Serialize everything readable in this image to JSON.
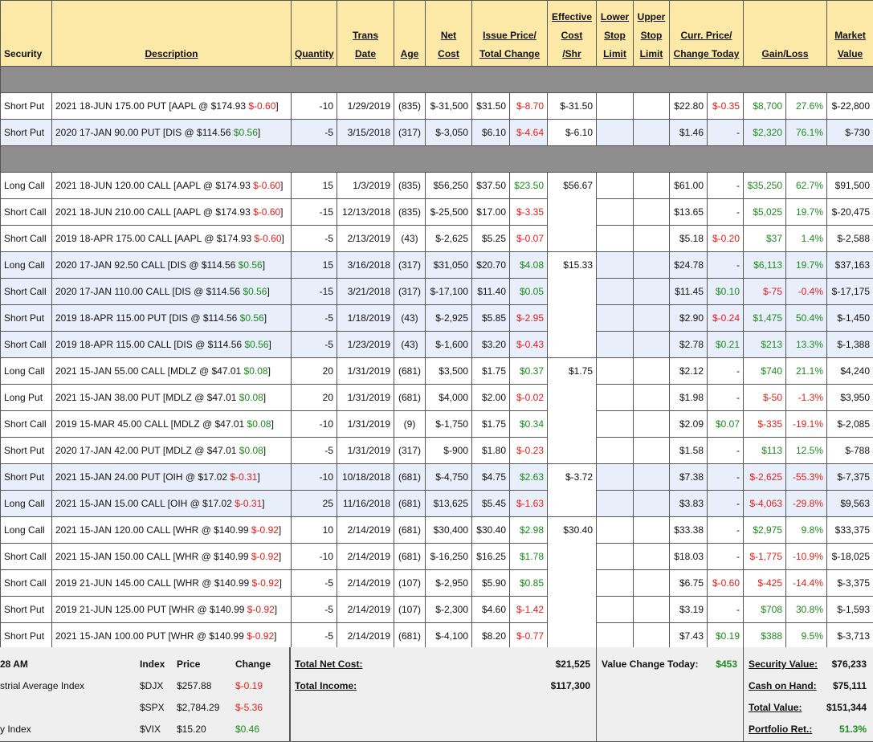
{
  "header": {
    "columns": [
      {
        "lines": [
          "Security"
        ]
      },
      {
        "lines": [
          "Description"
        ]
      },
      {
        "lines": [
          "Quantity"
        ]
      },
      {
        "lines": [
          "Trans",
          "Date"
        ]
      },
      {
        "lines": [
          "Age"
        ]
      },
      {
        "lines": [
          "Net",
          "Cost"
        ]
      },
      {
        "lines": [
          "Issue Price/",
          "Total Change"
        ],
        "span": 2
      },
      {
        "lines": [
          "Effective",
          "Cost",
          "/Shr"
        ]
      },
      {
        "lines": [
          "Lower",
          "Stop",
          "Limit"
        ]
      },
      {
        "lines": [
          "Upper",
          "Stop",
          "Limit"
        ]
      },
      {
        "lines": [
          "Curr. Price/",
          "Change Today"
        ],
        "span": 2
      },
      {
        "lines": [
          "Gain/Loss"
        ],
        "span": 2
      },
      {
        "lines": [
          "Market",
          "Value"
        ]
      }
    ]
  },
  "sections": [
    {
      "groups": [
        {
          "effective_cost": "$-31.50",
          "rows": [
            [
              "Short Put",
              "2021 18-JUN 175.00 PUT [AAPL @ $174.93",
              "$-0.60",
              "]",
              "-10",
              "1/29/2019",
              "(835)",
              "$-31,500",
              "$31.50",
              "$-8.70",
              "$22.80",
              "$-0.35",
              "$8,700",
              "27.6%",
              "$-22,800"
            ]
          ]
        },
        {
          "effective_cost": "$-6.10",
          "highlight": true,
          "rows": [
            [
              "Short Put",
              "2020 17-JAN 90.00 PUT [DIS @ $114.56",
              "$0.56",
              "]",
              "-5",
              "3/15/2018",
              "(317)",
              "$-3,050",
              "$6.10",
              "$-4.64",
              "$1.46",
              "-",
              "$2,320",
              "76.1%",
              "$-730"
            ]
          ]
        }
      ]
    },
    {
      "groups": [
        {
          "effective_cost": "$56.67",
          "rows": [
            [
              "Long Call",
              "2021 18-JUN 120.00 CALL [AAPL @ $174.93",
              "$-0.60",
              "]",
              "15",
              "1/3/2019",
              "(835)",
              "$56,250",
              "$37.50",
              "$23.50",
              "$61.00",
              "-",
              "$35,250",
              "62.7%",
              "$91,500"
            ],
            [
              "Short Call",
              "2021 18-JUN 210.00 CALL [AAPL @ $174.93",
              "$-0.60",
              "]",
              "-15",
              "12/13/2018",
              "(835)",
              "$-25,500",
              "$17.00",
              "$-3.35",
              "$13.65",
              "-",
              "$5,025",
              "19.7%",
              "$-20,475"
            ],
            [
              "Short Call",
              "2019 18-APR 175.00 CALL [AAPL @ $174.93",
              "$-0.60",
              "]",
              "-5",
              "2/13/2019",
              "(43)",
              "$-2,625",
              "$5.25",
              "$-0.07",
              "$5.18",
              "$-0.20",
              "$37",
              "1.4%",
              "$-2,588"
            ]
          ]
        },
        {
          "effective_cost": "$15.33",
          "highlight": true,
          "rows": [
            [
              "Long Call",
              "2020 17-JAN 92.50 CALL [DIS @ $114.56",
              "$0.56",
              "]",
              "15",
              "3/16/2018",
              "(317)",
              "$31,050",
              "$20.70",
              "$4.08",
              "$24.78",
              "-",
              "$6,113",
              "19.7%",
              "$37,163"
            ],
            [
              "Short Call",
              "2020 17-JAN 110.00 CALL [DIS @ $114.56",
              "$0.56",
              "]",
              "-15",
              "3/21/2018",
              "(317)",
              "$-17,100",
              "$11.40",
              "$0.05",
              "$11.45",
              "$0.10",
              "$-75",
              "-0.4%",
              "$-17,175"
            ],
            [
              "Short Put",
              "2019 18-APR 115.00 PUT [DIS @ $114.56",
              "$0.56",
              "]",
              "-5",
              "1/18/2019",
              "(43)",
              "$-2,925",
              "$5.85",
              "$-2.95",
              "$2.90",
              "$-0.24",
              "$1,475",
              "50.4%",
              "$-1,450"
            ],
            [
              "Short Call",
              "2019 18-APR 115.00 CALL [DIS @ $114.56",
              "$0.56",
              "]",
              "-5",
              "1/23/2019",
              "(43)",
              "$-1,600",
              "$3.20",
              "$-0.43",
              "$2.78",
              "$0.21",
              "$213",
              "13.3%",
              "$-1,388"
            ]
          ]
        },
        {
          "effective_cost": "$1.75",
          "rows": [
            [
              "Long Call",
              "2021 15-JAN 55.00 CALL [MDLZ @ $47.01",
              "$0.08",
              "]",
              "20",
              "1/31/2019",
              "(681)",
              "$3,500",
              "$1.75",
              "$0.37",
              "$2.12",
              "-",
              "$740",
              "21.1%",
              "$4,240"
            ],
            [
              "Long Put",
              "2021 15-JAN 38.00 PUT [MDLZ @ $47.01",
              "$0.08",
              "]",
              "20",
              "1/31/2019",
              "(681)",
              "$4,000",
              "$2.00",
              "$-0.02",
              "$1.98",
              "-",
              "$-50",
              "-1.3%",
              "$3,950"
            ],
            [
              "Short Call",
              "2019 15-MAR 45.00 CALL [MDLZ @ $47.01",
              "$0.08",
              "]",
              "-10",
              "1/31/2019",
              "(9)",
              "$-1,750",
              "$1.75",
              "$0.34",
              "$2.09",
              "$0.07",
              "$-335",
              "-19.1%",
              "$-2,085"
            ],
            [
              "Short Put",
              "2020 17-JAN 42.00 PUT [MDLZ @ $47.01",
              "$0.08",
              "]",
              "-5",
              "1/31/2019",
              "(317)",
              "$-900",
              "$1.80",
              "$-0.23",
              "$1.58",
              "-",
              "$113",
              "12.5%",
              "$-788"
            ]
          ]
        },
        {
          "effective_cost": "$-3.72",
          "highlight": true,
          "rows": [
            [
              "Short Put",
              "2021 15-JAN 24.00 PUT [OIH @ $17.02",
              "$-0.31",
              "]",
              "-10",
              "10/18/2018",
              "(681)",
              "$-4,750",
              "$4.75",
              "$2.63",
              "$7.38",
              "-",
              "$-2,625",
              "-55.3%",
              "$-7,375"
            ],
            [
              "Long Call",
              "2021 15-JAN 15.00 CALL [OIH @ $17.02",
              "$-0.31",
              "]",
              "25",
              "11/16/2018",
              "(681)",
              "$13,625",
              "$5.45",
              "$-1.63",
              "$3.83",
              "-",
              "$-4,063",
              "-29.8%",
              "$9,563"
            ]
          ]
        },
        {
          "effective_cost": "$30.40",
          "rows": [
            [
              "Long Call",
              "2021 15-JAN 120.00 CALL [WHR @ $140.99",
              "$-0.92",
              "]",
              "10",
              "2/14/2019",
              "(681)",
              "$30,400",
              "$30.40",
              "$2.98",
              "$33.38",
              "-",
              "$2,975",
              "9.8%",
              "$33,375"
            ],
            [
              "Short Call",
              "2021 15-JAN 150.00 CALL [WHR @ $140.99",
              "$-0.92",
              "]",
              "-10",
              "2/14/2019",
              "(681)",
              "$-16,250",
              "$16.25",
              "$1.78",
              "$18.03",
              "-",
              "$-1,775",
              "-10.9%",
              "$-18,025"
            ],
            [
              "Short Call",
              "2019 21-JUN 145.00 CALL [WHR @ $140.99",
              "$-0.92",
              "]",
              "-5",
              "2/14/2019",
              "(107)",
              "$-2,950",
              "$5.90",
              "$0.85",
              "$6.75",
              "$-0.60",
              "$-425",
              "-14.4%",
              "$-3,375"
            ],
            [
              "Short Put",
              "2019 21-JUN 125.00 PUT [WHR @ $140.99",
              "$-0.92",
              "]",
              "-5",
              "2/14/2019",
              "(107)",
              "$-2,300",
              "$4.60",
              "$-1.42",
              "$3.19",
              "-",
              "$708",
              "30.8%",
              "$-1,593"
            ],
            [
              "Short Put",
              "2021 15-JAN 100.00 PUT [WHR @ $140.99",
              "$-0.92",
              "]",
              "-5",
              "2/14/2019",
              "(681)",
              "$-4,100",
              "$8.20",
              "$-0.77",
              "$7.43",
              "$0.19",
              "$388",
              "9.5%",
              "$-3,713"
            ]
          ]
        }
      ]
    }
  ],
  "footer": {
    "time": "28 AM",
    "index_headers": [
      "Index",
      "Price",
      "Change"
    ],
    "indices": [
      [
        "strial Average Index",
        "$DJX",
        "$257.88",
        "$-0.19"
      ],
      [
        null,
        "$SPX",
        "$2,784.29",
        "$-5.36"
      ],
      [
        "y Index",
        "$VIX",
        "$15.20",
        "$0.46"
      ]
    ],
    "totals": [
      [
        "Total Net Cost:",
        "$21,525"
      ],
      [
        "Total Income:",
        "$117,300"
      ]
    ],
    "value_change": [
      "Value Change Today:",
      "$453"
    ],
    "summary": [
      [
        "Security Value:",
        "$76,233"
      ],
      [
        "Cash on Hand:",
        "$75,111"
      ],
      [
        "Total Value:",
        "$151,344"
      ],
      [
        "Portfolio Ret.:",
        "51.3%"
      ]
    ]
  }
}
